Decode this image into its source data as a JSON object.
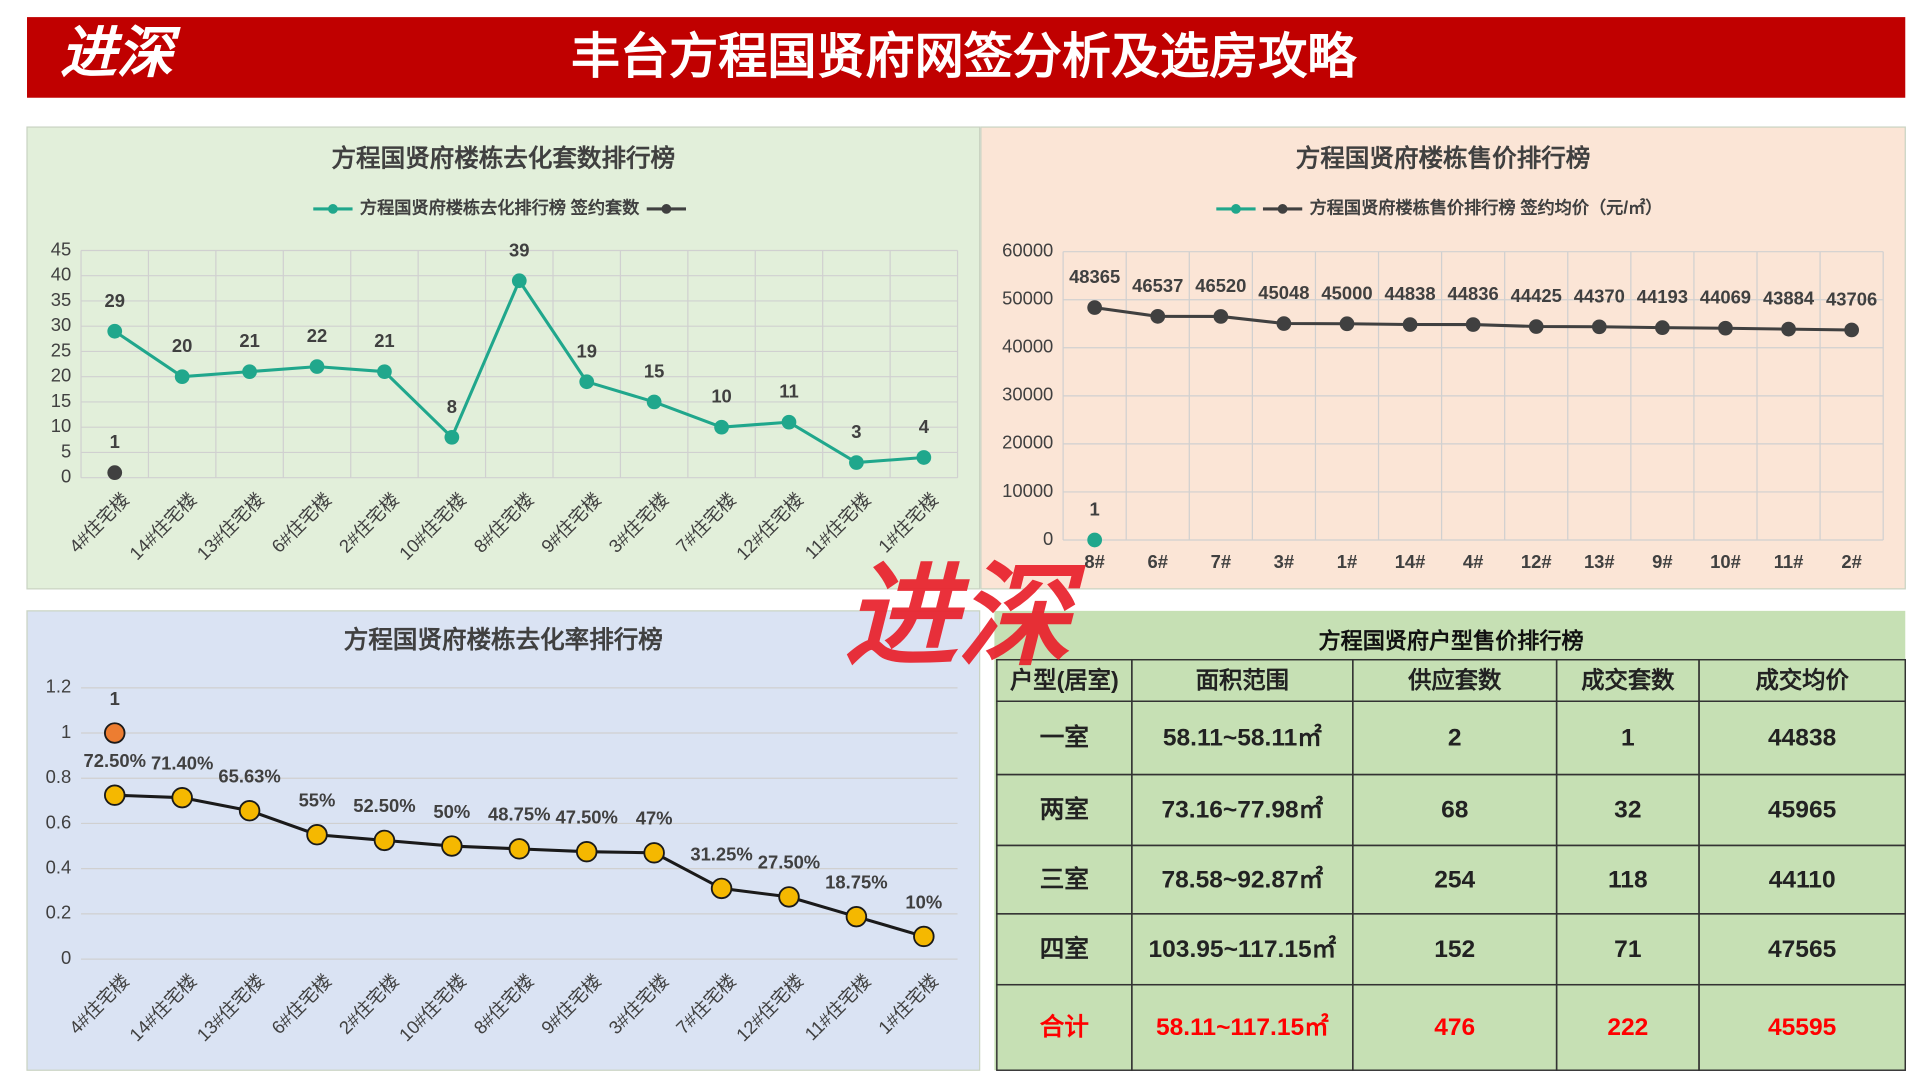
{
  "header": {
    "logo": "进深",
    "title": "丰台方程国贤府网签分析及选房攻略"
  },
  "watermark": "进深",
  "chart_data": [
    {
      "type": "line",
      "title": "方程国贤府楼栋去化套数排行榜",
      "categories": [
        "4#住宅楼",
        "14#住宅楼",
        "13#住宅楼",
        "6#住宅楼",
        "2#住宅楼",
        "10#住宅楼",
        "8#住宅楼",
        "9#住宅楼",
        "3#住宅楼",
        "7#住宅楼",
        "12#住宅楼",
        "11#住宅楼",
        "1#住宅楼"
      ],
      "series": [
        {
          "name": "方程国贤府楼栋去化排行榜 签约套数",
          "color": "#20a78c",
          "values": [
            29,
            20,
            21,
            22,
            21,
            8,
            39,
            19,
            15,
            10,
            11,
            3,
            4
          ]
        },
        {
          "color": "#404040",
          "values": [
            1,
            null,
            null,
            null,
            null,
            null,
            null,
            null,
            null,
            null,
            null,
            null,
            null
          ]
        }
      ],
      "ylim": [
        0,
        45
      ],
      "yticks": [
        0,
        5,
        10,
        15,
        20,
        25,
        30,
        35,
        40,
        45
      ],
      "grid": true,
      "x_grid": true,
      "legend": true,
      "background": "#e2efda"
    },
    {
      "type": "line",
      "title": "方程国贤府楼栋售价排行榜",
      "categories": [
        "8#",
        "6#",
        "7#",
        "3#",
        "1#",
        "14#",
        "4#",
        "12#",
        "13#",
        "9#",
        "10#",
        "11#",
        "2#"
      ],
      "series": [
        {
          "color": "#20a78c",
          "values": [
            1,
            null,
            null,
            null,
            null,
            null,
            null,
            null,
            null,
            null,
            null,
            null,
            null
          ]
        },
        {
          "name": "方程国贤府楼栋售价排行榜 签约均价（元/㎡）",
          "color": "#404040",
          "values": [
            48365,
            46537,
            46520,
            45048,
            45000,
            44838,
            44836,
            44425,
            44370,
            44193,
            44069,
            43884,
            43706
          ]
        }
      ],
      "ylim": [
        0,
        60000
      ],
      "yticks": [
        0,
        10000,
        20000,
        30000,
        40000,
        50000,
        60000
      ],
      "grid": true,
      "x_grid": true,
      "legend": true,
      "background": "#fbe5d6"
    },
    {
      "type": "line",
      "title": "方程国贤府楼栋去化率排行榜",
      "categories": [
        "4#住宅楼",
        "14#住宅楼",
        "13#住宅楼",
        "6#住宅楼",
        "2#住宅楼",
        "10#住宅楼",
        "8#住宅楼",
        "9#住宅楼",
        "3#住宅楼",
        "7#住宅楼",
        "12#住宅楼",
        "11#住宅楼",
        "1#住宅楼"
      ],
      "series": [
        {
          "color": "#f5b800",
          "line_color": "#1a1a1a",
          "values": [
            0.725,
            0.714,
            0.6563,
            0.55,
            0.525,
            0.5,
            0.4875,
            0.475,
            0.47,
            0.3125,
            0.275,
            0.1875,
            0.1
          ],
          "value_labels": [
            "72.50%",
            "71.40%",
            "65.63%",
            "55%",
            "52.50%",
            "50%",
            "48.75%",
            "47.50%",
            "47%",
            "31.25%",
            "27.50%",
            "18.75%",
            "10%"
          ]
        },
        {
          "color": "#ed7d31",
          "line_color": "#1a1a1a",
          "values": [
            1,
            null,
            null,
            null,
            null,
            null,
            null,
            null,
            null,
            null,
            null,
            null,
            null
          ]
        }
      ],
      "ylim": [
        0,
        1.2
      ],
      "yticks": [
        0,
        0.2,
        0.4,
        0.6,
        0.8,
        1,
        1.2
      ],
      "grid": true,
      "x_grid": false,
      "legend": false,
      "background": "#dae3f3"
    }
  ],
  "table": {
    "title": "方程国贤府户型售价排行榜",
    "header": [
      "户型(居室)",
      "面积范围",
      "供应套数",
      "成交套数",
      "成交均价"
    ],
    "rows": [
      [
        "一室",
        "58.11~58.11㎡",
        "2",
        "1",
        "44838"
      ],
      [
        "两室",
        "73.16~77.98㎡",
        "68",
        "32",
        "45965"
      ],
      [
        "三室",
        "78.58~92.87㎡",
        "254",
        "118",
        "44110"
      ],
      [
        "四室",
        "103.95~117.15㎡",
        "152",
        "71",
        "47565"
      ]
    ],
    "total": [
      "合计",
      "58.11~117.15㎡",
      "476",
      "222",
      "45595"
    ]
  }
}
